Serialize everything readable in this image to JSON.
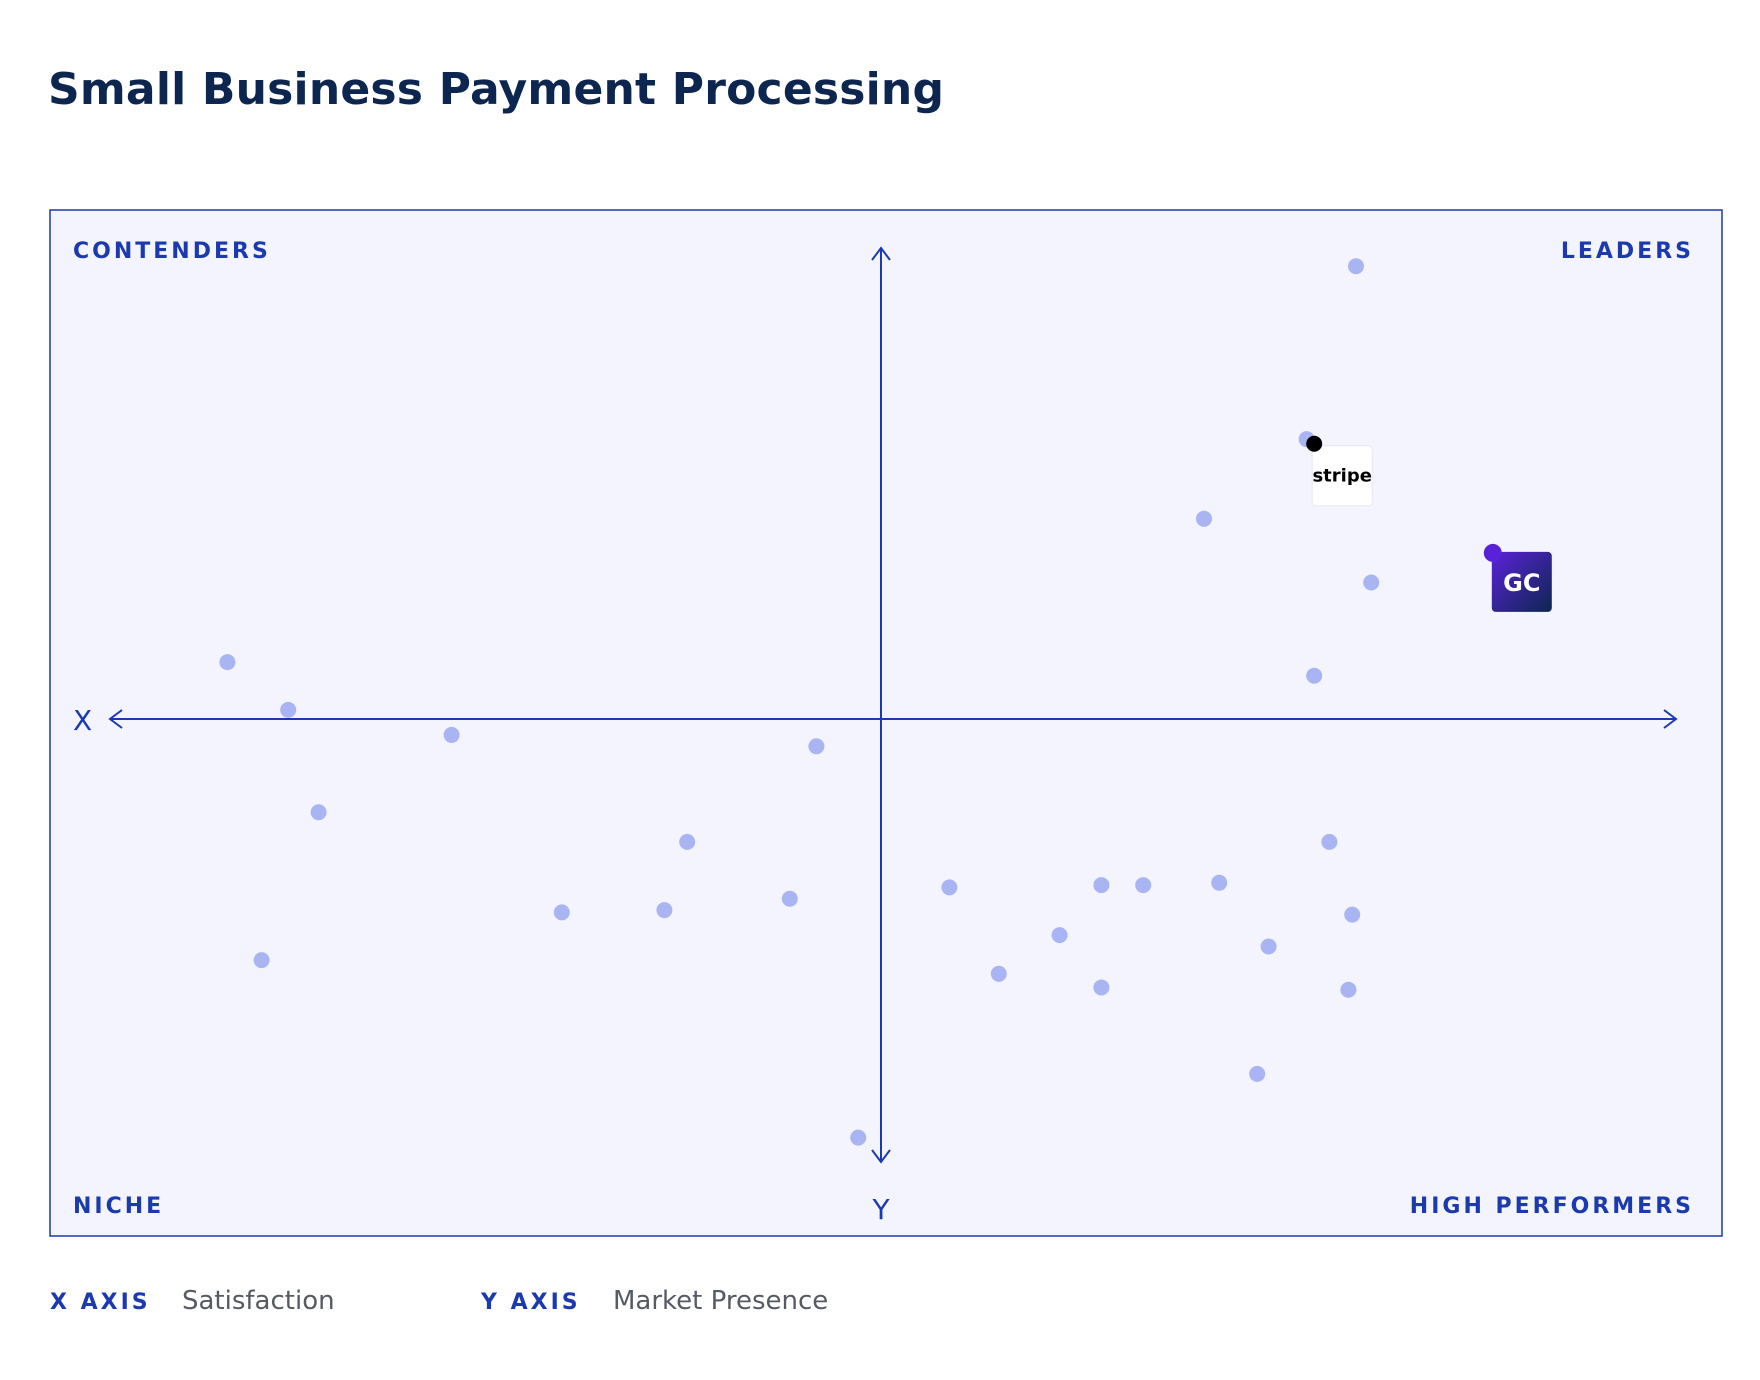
{
  "title": "Small Business Payment Processing",
  "colors": {
    "title": "#0d2650",
    "accent": "#1b3ab0",
    "panel_bg": "#f3f4fd",
    "dot": "#a9b4f3",
    "gc_dot": "#5a22d8",
    "stripe_dot": "#000000"
  },
  "quadrants": {
    "top_left": "CONTENDERS",
    "top_right": "LEADERS",
    "bottom_left": "NICHE",
    "bottom_right": "HIGH PERFORMERS"
  },
  "axis_letters": {
    "x": "X",
    "y": "Y"
  },
  "legend": {
    "x_key": "X AXIS",
    "x_value": "Satisfaction",
    "y_key": "Y AXIS",
    "y_value": "Market Presence"
  },
  "chart_data": {
    "type": "scatter",
    "title": "Small Business Payment Processing",
    "xlabel": "Satisfaction",
    "ylabel": "Market Presence",
    "xlim": [
      -100,
      100
    ],
    "ylim": [
      -100,
      100
    ],
    "grid": false,
    "points": [
      {
        "x": 62.5,
        "y": 99.5
      },
      {
        "x": 56.0,
        "y": 61.5
      },
      {
        "x": 42.5,
        "y": 44.0
      },
      {
        "x": 64.5,
        "y": 30.0
      },
      {
        "x": 57.0,
        "y": 9.5
      },
      {
        "x": -86.0,
        "y": 12.5
      },
      {
        "x": -78.0,
        "y": 2.0
      },
      {
        "x": -56.5,
        "y": -3.5
      },
      {
        "x": -74.0,
        "y": -20.5
      },
      {
        "x": -8.5,
        "y": -6.0
      },
      {
        "x": -25.5,
        "y": -27.0
      },
      {
        "x": -12.0,
        "y": -39.5
      },
      {
        "x": -42.0,
        "y": -42.5
      },
      {
        "x": -28.5,
        "y": -42.0
      },
      {
        "x": -81.5,
        "y": -53.0
      },
      {
        "x": 9.0,
        "y": -37.0
      },
      {
        "x": 29.0,
        "y": -36.5
      },
      {
        "x": 34.5,
        "y": -36.5
      },
      {
        "x": 44.5,
        "y": -36.0
      },
      {
        "x": 59.0,
        "y": -27.0
      },
      {
        "x": 62.0,
        "y": -43.0
      },
      {
        "x": 23.5,
        "y": -47.5
      },
      {
        "x": 51.0,
        "y": -50.0
      },
      {
        "x": 15.5,
        "y": -56.0
      },
      {
        "x": 29.0,
        "y": -59.0
      },
      {
        "x": 61.5,
        "y": -59.5
      },
      {
        "x": 49.5,
        "y": -78.0
      },
      {
        "x": -3.0,
        "y": -92.0
      }
    ],
    "highlighted": [
      {
        "name": "stripe",
        "x": 57.0,
        "y": 60.5,
        "color": "#000000"
      },
      {
        "name": "GC",
        "x": 80.5,
        "y": 36.5,
        "color": "#5a22d8"
      }
    ]
  }
}
